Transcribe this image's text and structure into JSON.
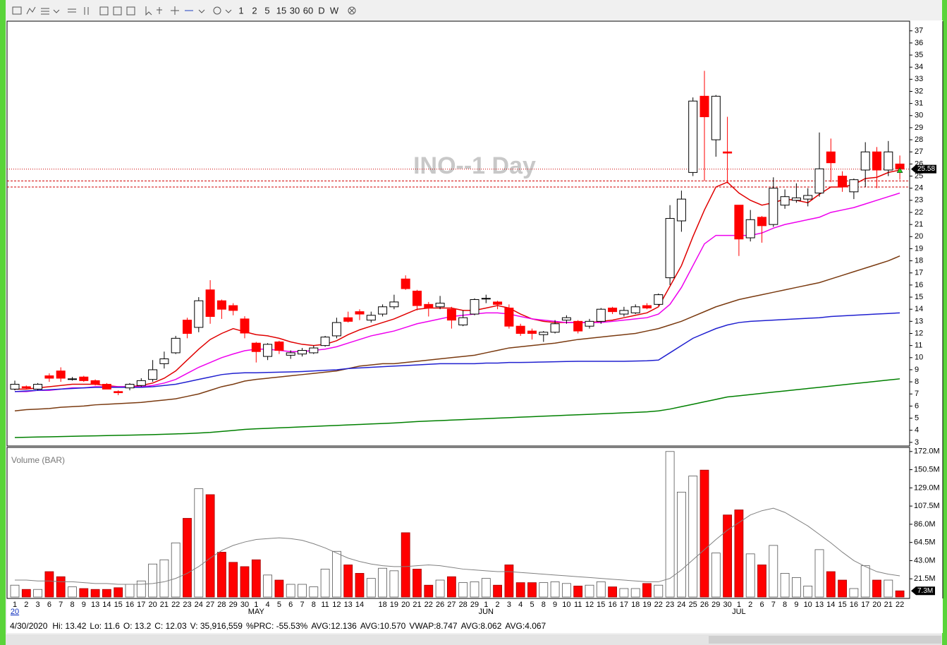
{
  "toolbar": {
    "intervals": [
      "1",
      "2",
      "5",
      "15",
      "30",
      "60",
      "D",
      "W"
    ]
  },
  "chart_data": {
    "type": "candlestick",
    "title": "INO--1 Day",
    "categories": [
      "1",
      "2",
      "3",
      "6",
      "7",
      "8",
      "9",
      "13",
      "14",
      "15",
      "16",
      "17",
      "20",
      "21",
      "22",
      "23",
      "24",
      "27",
      "28",
      "29",
      "30",
      "1",
      "4",
      "5",
      "6",
      "7",
      "8",
      "11",
      "12",
      "13",
      "14",
      null,
      "18",
      "19",
      "20",
      "21",
      "22",
      "26",
      "27",
      "28",
      "29",
      "1",
      "2",
      "3",
      "4",
      "5",
      "8",
      "9",
      "10",
      "11",
      "12",
      "15",
      "16",
      "17",
      "18",
      "19",
      "22",
      "23",
      "24",
      "25",
      "26",
      "29",
      "30",
      "1",
      "2",
      "6",
      "7",
      "8",
      "9",
      "10",
      "13",
      "14",
      "15",
      "16",
      "17",
      "20",
      "21",
      "22"
    ],
    "month_labels": [
      {
        "at": 0,
        "label": "20"
      },
      {
        "at": 21,
        "label": "MAY"
      },
      {
        "at": 41,
        "label": "JUN"
      },
      {
        "at": 63,
        "label": "JUL"
      }
    ],
    "open": [
      7.4,
      7.6,
      7.4,
      8.5,
      8.9,
      8.2,
      8.4,
      8.1,
      7.8,
      7.2,
      7.5,
      7.7,
      8.2,
      9.5,
      10.4,
      13.1,
      12.5,
      15.6,
      14.7,
      14.3,
      13.2,
      11.2,
      10.1,
      11.3,
      10.2,
      10.3,
      10.4,
      11.0,
      11.8,
      13.3,
      13.8,
      13.1,
      13.6,
      14.2,
      16.5,
      15.5,
      14.4,
      14.2,
      14.0,
      12.7,
      13.6,
      14.85,
      14.6,
      14.1,
      12.6,
      12.2,
      11.9,
      12.1,
      13.1,
      13.0,
      12.6,
      13.0,
      14.1,
      13.6,
      13.7,
      14.3,
      14.4,
      16.6,
      21.3,
      25.3,
      31.6,
      28.0,
      27.0,
      22.6,
      19.9,
      21.6,
      21.0,
      22.6,
      23.0,
      23.1,
      23.6,
      27.0,
      25.0,
      23.7,
      25.5,
      27.0,
      25.5,
      26.0
    ],
    "high": [
      8.1,
      7.7,
      7.9,
      8.7,
      9.2,
      8.4,
      8.5,
      8.2,
      7.9,
      7.3,
      7.9,
      8.3,
      9.8,
      10.5,
      11.8,
      13.3,
      15.0,
      16.4,
      14.8,
      14.5,
      13.42,
      11.3,
      11.2,
      11.4,
      10.6,
      10.8,
      11.0,
      11.8,
      13.3,
      13.8,
      14.0,
      13.8,
      14.4,
      15.2,
      16.8,
      15.6,
      14.6,
      15.1,
      14.2,
      13.9,
      14.9,
      15.2,
      14.7,
      14.4,
      12.8,
      12.4,
      12.2,
      13.1,
      13.5,
      13.1,
      13.2,
      14.1,
      14.2,
      14.2,
      14.4,
      14.5,
      15.3,
      22.6,
      23.8,
      31.5,
      33.7,
      31.7,
      29.9,
      22.6,
      22.2,
      21.7,
      24.9,
      23.9,
      24.4,
      24.0,
      28.6,
      28.1,
      25.4,
      24.8,
      27.8,
      27.4,
      27.9,
      26.7
    ],
    "low": [
      7.3,
      7.4,
      7.3,
      8.0,
      8.0,
      8.1,
      8.0,
      7.7,
      7.4,
      6.9,
      7.3,
      7.6,
      8.0,
      9.1,
      10.3,
      11.6,
      12.1,
      12.8,
      13.2,
      13.5,
      11.6,
      9.6,
      9.8,
      10.3,
      9.9,
      10.1,
      10.3,
      10.9,
      11.6,
      12.9,
      13.1,
      12.9,
      13.4,
      14.0,
      15.6,
      13.9,
      13.4,
      14.0,
      12.4,
      12.6,
      13.5,
      14.5,
      14.0,
      12.4,
      11.8,
      11.5,
      11.3,
      12.0,
      12.8,
      12.0,
      12.4,
      12.8,
      13.6,
      13.4,
      13.6,
      14.0,
      14.3,
      16.0,
      20.4,
      25.0,
      24.6,
      26.6,
      24.4,
      18.4,
      19.6,
      19.5,
      20.8,
      22.3,
      22.8,
      22.5,
      23.3,
      24.5,
      23.7,
      23.1,
      24.1,
      24.0,
      25.0,
      24.7
    ],
    "close": [
      7.8,
      7.5,
      7.8,
      8.3,
      8.3,
      8.25,
      8.1,
      7.8,
      7.4,
      7.1,
      7.8,
      8.1,
      9.0,
      9.9,
      11.6,
      12.0,
      14.7,
      13.4,
      14.0,
      13.9,
      12.03,
      10.5,
      11.1,
      10.6,
      10.4,
      10.6,
      10.8,
      11.7,
      12.9,
      13.0,
      13.6,
      13.5,
      14.2,
      14.6,
      15.7,
      14.3,
      14.1,
      14.5,
      13.1,
      13.3,
      14.8,
      14.9,
      14.4,
      12.6,
      12.0,
      12.0,
      12.1,
      12.8,
      13.3,
      12.2,
      13.0,
      14.0,
      13.8,
      13.9,
      14.2,
      14.1,
      15.2,
      21.5,
      23.1,
      31.2,
      29.9,
      31.6,
      26.9,
      19.8,
      21.4,
      20.9,
      24.0,
      23.3,
      23.2,
      23.4,
      25.6,
      26.1,
      24.1,
      24.7,
      27.0,
      25.5,
      27.0,
      25.58
    ],
    "up_color": "#ffffff",
    "down_color": "#ff0000",
    "lines": [
      {
        "color": "#e00000",
        "values": [
          7.4,
          7.4,
          7.5,
          7.6,
          7.7,
          7.8,
          7.8,
          7.8,
          7.7,
          7.6,
          7.6,
          7.7,
          7.9,
          8.3,
          8.9,
          9.8,
          10.7,
          11.5,
          12.0,
          12.4,
          12.136,
          11.9,
          11.8,
          11.6,
          11.3,
          11.1,
          11.0,
          11.1,
          11.4,
          11.9,
          12.3,
          12.6,
          12.9,
          13.2,
          13.6,
          14.0,
          14.1,
          14.1,
          14.1,
          13.9,
          13.9,
          14.1,
          14.3,
          14.1,
          13.6,
          13.2,
          13.0,
          12.9,
          12.9,
          12.9,
          12.9,
          13.0,
          13.1,
          13.3,
          13.5,
          13.7,
          14.2,
          15.9,
          17.6,
          20.0,
          22.2,
          24.1,
          24.5,
          23.6,
          23.0,
          22.6,
          22.8,
          23.1,
          23.0,
          22.8,
          23.5,
          24.1,
          24.1,
          24.3,
          24.8,
          24.9,
          25.3,
          25.5
        ]
      },
      {
        "color": "#ee00ee",
        "values": [
          7.2,
          7.2,
          7.3,
          7.3,
          7.4,
          7.5,
          7.5,
          7.6,
          7.6,
          7.6,
          7.6,
          7.6,
          7.7,
          7.9,
          8.2,
          8.7,
          9.2,
          9.6,
          10.0,
          10.3,
          10.57,
          10.7,
          10.7,
          10.6,
          10.5,
          10.5,
          10.6,
          10.7,
          10.9,
          11.2,
          11.5,
          11.8,
          12.0,
          12.2,
          12.5,
          12.8,
          13.0,
          13.2,
          13.4,
          13.5,
          13.6,
          13.7,
          13.7,
          13.6,
          13.4,
          13.2,
          13.1,
          13.0,
          12.9,
          12.9,
          12.9,
          12.9,
          13.0,
          13.1,
          13.2,
          13.3,
          13.6,
          14.4,
          15.8,
          17.6,
          19.4,
          20.1,
          20.1,
          20.1,
          20.1,
          20.3,
          20.7,
          21.0,
          21.2,
          21.4,
          21.6,
          22.0,
          22.2,
          22.4,
          22.7,
          23.0,
          23.3,
          23.6
        ]
      },
      {
        "color": "#7a3a10",
        "values": [
          5.6,
          5.7,
          5.75,
          5.8,
          5.9,
          5.95,
          6.0,
          6.1,
          6.15,
          6.2,
          6.25,
          6.3,
          6.4,
          6.5,
          6.6,
          6.8,
          7.0,
          7.3,
          7.6,
          7.8,
          8.062,
          8.2,
          8.3,
          8.4,
          8.5,
          8.6,
          8.7,
          8.8,
          8.9,
          9.1,
          9.3,
          9.4,
          9.5,
          9.5,
          9.6,
          9.7,
          9.8,
          9.9,
          10.0,
          10.1,
          10.2,
          10.4,
          10.6,
          10.8,
          10.9,
          11.0,
          11.1,
          11.2,
          11.35,
          11.5,
          11.6,
          11.7,
          11.8,
          11.9,
          12.0,
          12.2,
          12.4,
          12.7,
          13.0,
          13.4,
          13.8,
          14.2,
          14.5,
          14.8,
          15.0,
          15.2,
          15.4,
          15.6,
          15.8,
          16.0,
          16.2,
          16.5,
          16.8,
          17.1,
          17.4,
          17.7,
          18.0,
          18.4
        ]
      },
      {
        "color": "#2020d0",
        "values": [
          7.2,
          7.25,
          7.3,
          7.35,
          7.4,
          7.45,
          7.5,
          7.55,
          7.55,
          7.55,
          7.55,
          7.55,
          7.6,
          7.7,
          7.8,
          8.0,
          8.2,
          8.4,
          8.6,
          8.7,
          8.747,
          8.75,
          8.78,
          8.8,
          8.82,
          8.85,
          8.9,
          8.95,
          9.0,
          9.1,
          9.15,
          9.2,
          9.25,
          9.3,
          9.35,
          9.4,
          9.45,
          9.5,
          9.5,
          9.5,
          9.5,
          9.55,
          9.55,
          9.6,
          9.6,
          9.62,
          9.64,
          9.66,
          9.68,
          9.7,
          9.7,
          9.7,
          9.7,
          9.7,
          9.72,
          9.74,
          9.8,
          10.4,
          11.0,
          11.6,
          12.0,
          12.4,
          12.7,
          12.9,
          13.0,
          13.05,
          13.1,
          13.15,
          13.2,
          13.25,
          13.3,
          13.4,
          13.45,
          13.5,
          13.55,
          13.6,
          13.65,
          13.7
        ]
      },
      {
        "color": "#008000",
        "values": [
          3.4,
          3.42,
          3.44,
          3.46,
          3.48,
          3.5,
          3.52,
          3.54,
          3.56,
          3.58,
          3.6,
          3.62,
          3.64,
          3.67,
          3.7,
          3.73,
          3.77,
          3.82,
          3.9,
          3.98,
          4.067,
          4.12,
          4.16,
          4.2,
          4.24,
          4.28,
          4.32,
          4.36,
          4.4,
          4.44,
          4.48,
          4.52,
          4.56,
          4.6,
          4.66,
          4.72,
          4.76,
          4.8,
          4.84,
          4.88,
          4.92,
          4.96,
          5.0,
          5.04,
          5.08,
          5.12,
          5.16,
          5.2,
          5.24,
          5.28,
          5.32,
          5.36,
          5.4,
          5.44,
          5.48,
          5.52,
          5.6,
          5.75,
          5.95,
          6.15,
          6.35,
          6.55,
          6.75,
          6.85,
          6.95,
          7.05,
          7.15,
          7.25,
          7.35,
          7.45,
          7.55,
          7.65,
          7.75,
          7.85,
          7.95,
          8.05,
          8.15,
          8.25
        ]
      }
    ],
    "reference_lines": [
      25.58,
      24.6,
      24.1
    ],
    "reference_color": "#d00000",
    "ylim": [
      2.7,
      37.8
    ],
    "yticks": [
      3,
      4,
      5,
      6,
      7,
      8,
      9,
      10,
      11,
      12,
      13,
      14,
      15,
      16,
      17,
      18,
      19,
      20,
      21,
      22,
      23,
      24,
      25,
      26,
      27,
      28,
      29,
      30,
      31,
      32,
      33,
      34,
      35,
      36,
      37
    ],
    "volume": {
      "title": "Volume (BAR)",
      "values": [
        14,
        9,
        9,
        30,
        24,
        12,
        10,
        9,
        9,
        11,
        15,
        19,
        39,
        44,
        64,
        93,
        128,
        121,
        53,
        41,
        35.916559,
        44,
        26,
        20,
        15,
        15,
        12,
        33,
        54,
        38,
        28,
        22,
        34,
        31,
        76,
        33,
        14,
        20,
        24,
        17,
        18,
        22,
        14,
        38,
        17,
        17,
        17,
        18,
        16,
        13,
        14,
        18,
        12,
        10,
        10,
        16,
        14,
        172,
        124,
        143,
        150,
        52,
        97,
        103,
        51,
        38,
        61,
        28,
        23,
        13,
        56,
        30,
        20,
        10,
        37,
        20,
        20,
        7.3
      ],
      "last_label": "7.3M",
      "ma": [
        20,
        20,
        19,
        19,
        18,
        18,
        17,
        16,
        16,
        15,
        15,
        15,
        16,
        18,
        22,
        28,
        36,
        46,
        55,
        61,
        65,
        68,
        69,
        70,
        69,
        67,
        63,
        58,
        52,
        46,
        42,
        39,
        37,
        36,
        36,
        37,
        38,
        37,
        35,
        33,
        32,
        31,
        30,
        30,
        29,
        28,
        27,
        26,
        25,
        24,
        23,
        22,
        21,
        20,
        19,
        18,
        18,
        22,
        32,
        44,
        56,
        68,
        79,
        88,
        97,
        102,
        105,
        100,
        92,
        84,
        74,
        64,
        53,
        43,
        36,
        30,
        27,
        25
      ],
      "ma_color": "#808080",
      "ylim": [
        0,
        176
      ],
      "yticks": [
        {
          "value": 21.5,
          "label": "21.5M"
        },
        {
          "value": 43,
          "label": "43.0M"
        },
        {
          "value": 64.5,
          "label": "64.5M"
        },
        {
          "value": 86,
          "label": "86.0M"
        },
        {
          "value": 107.5,
          "label": "107.5M"
        },
        {
          "value": 129,
          "label": "129.0M"
        },
        {
          "value": 150.5,
          "label": "150.5M"
        },
        {
          "value": 172,
          "label": "172.0M"
        }
      ]
    },
    "status": [
      "4/30/2020",
      "Hi: 13.42",
      "Lo: 11.6",
      "O: 13.2",
      "C: 12.03",
      "V: 35,916,559",
      "%PRC: -55.53%",
      "AVG:12.136",
      "AVG:10.570",
      "VWAP:8.747",
      "AVG:8.062",
      "AVG:4.067"
    ]
  }
}
